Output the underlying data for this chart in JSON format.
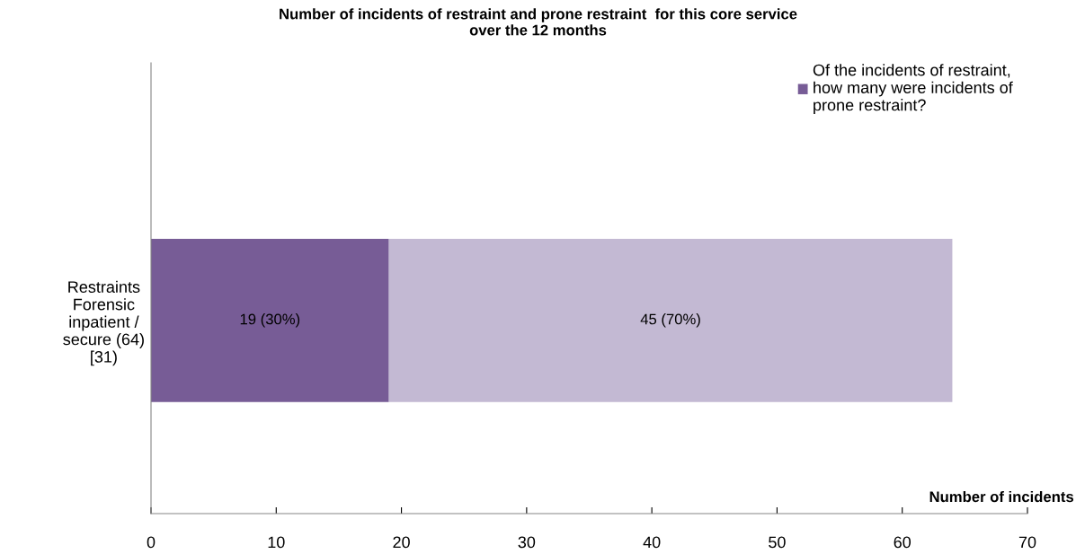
{
  "chart_data": {
    "type": "bar",
    "orientation": "horizontal",
    "stacked": true,
    "title": "Number of incidents of restraint and prone restraint  for this core service\nover the 12 months",
    "xlabel": "Number of incidents",
    "categories": [
      "Restraints\nForensic\ninpatient /\nsecure (64)\n[31)"
    ],
    "series": [
      {
        "name": "Of the incidents of restraint,\nhow many were incidents of\nprone restraint?",
        "color": "#775c96",
        "values": [
          19
        ],
        "value_labels": [
          "19 (30%)"
        ]
      },
      {
        "color": "#c3b9d3",
        "values": [
          45
        ],
        "value_labels": [
          "45 (70%)"
        ]
      }
    ],
    "xlim": [
      0,
      70
    ],
    "xticks": [
      0,
      10,
      20,
      30,
      40,
      50,
      60,
      70
    ],
    "grid": false,
    "legend": "top right"
  }
}
